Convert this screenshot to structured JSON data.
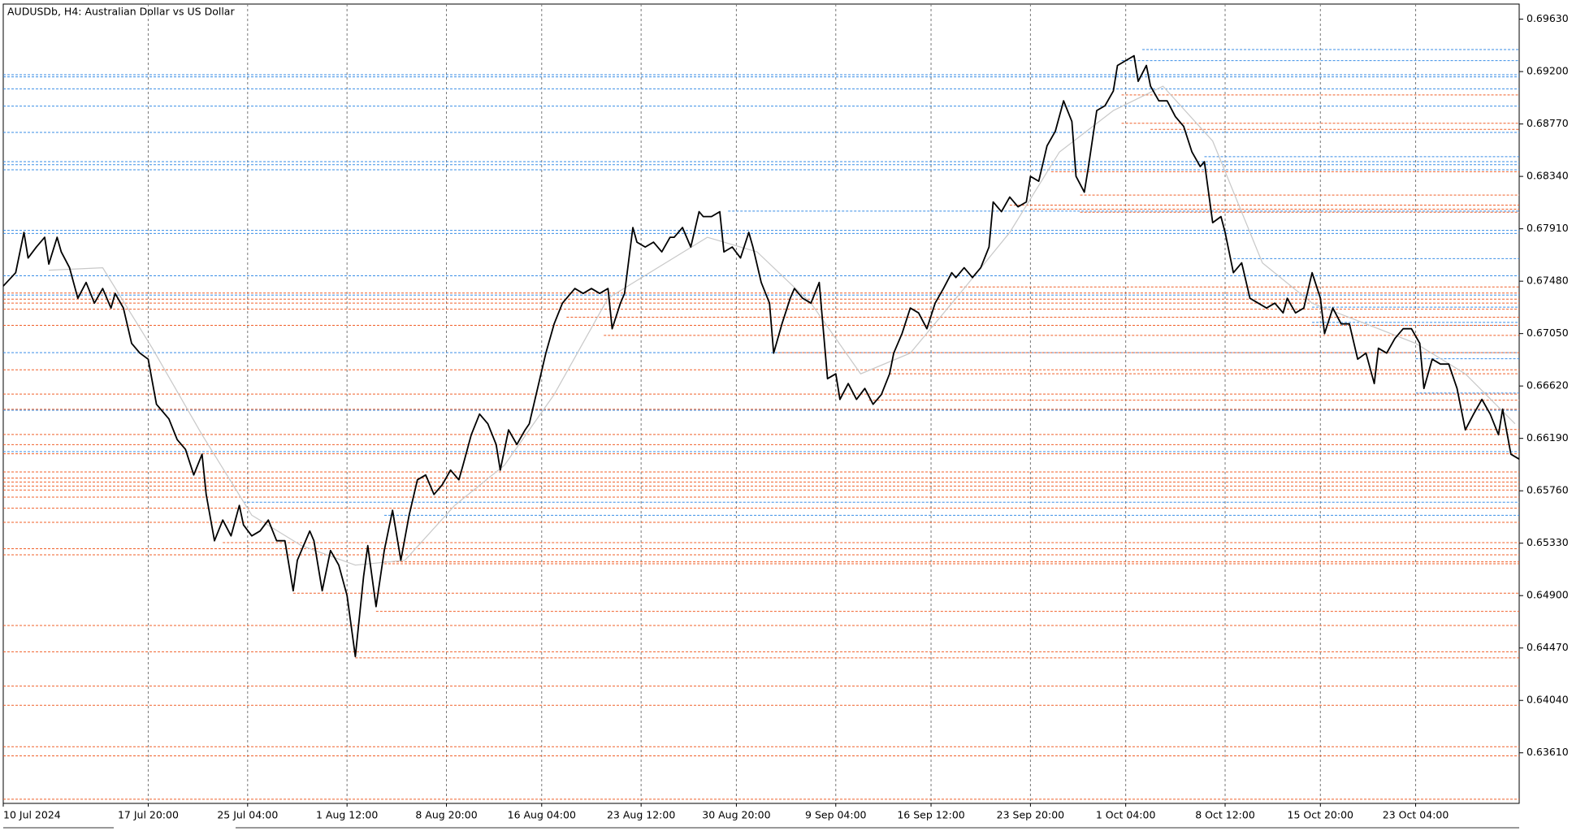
{
  "chart_data": {
    "type": "line",
    "title": "AUDUSDb, H4:  Australian Dollar vs US Dollar",
    "x": [
      0,
      3,
      5,
      6,
      8,
      10,
      11,
      13,
      14,
      16,
      18,
      20,
      22,
      24,
      26,
      27,
      29,
      31,
      33,
      35,
      37,
      40,
      42,
      44,
      46,
      48,
      49,
      51,
      53,
      55,
      57,
      58,
      60,
      62,
      64,
      66,
      68,
      70,
      71,
      74,
      75,
      77,
      79,
      81,
      83,
      85,
      87,
      88,
      90,
      92,
      94,
      96,
      98,
      100,
      102,
      104,
      106,
      108,
      110,
      111,
      113,
      115,
      117,
      119,
      120,
      122,
      124,
      126,
      127,
      129,
      131,
      133,
      135,
      137,
      138,
      140,
      142,
      144,
      146,
      147,
      149,
      150,
      152,
      153,
      155,
      157,
      159,
      161,
      162,
      164,
      166,
      168,
      169,
      171,
      173,
      174,
      176,
      178,
      180,
      181,
      183,
      185,
      186,
      188,
      190,
      191,
      193,
      195,
      197,
      199,
      201,
      202,
      204,
      206,
      208,
      210,
      212,
      214,
      215,
      217,
      219,
      221,
      223,
      225,
      227,
      229,
      230,
      232,
      234,
      236,
      238,
      239,
      241,
      243,
      245,
      247,
      248,
      250,
      252,
      254,
      256,
      258,
      259,
      261,
      262,
      264,
      266,
      268,
      269,
      271,
      273,
      274,
      276,
      277,
      279,
      281,
      283,
      285,
      287,
      289,
      290,
      292,
      294,
      295,
      297,
      299,
      301,
      303,
      305,
      307,
      309,
      310,
      312,
      314,
      316,
      318,
      319,
      321,
      323,
      325,
      327,
      329,
      331,
      332,
      334,
      336,
      338,
      340,
      342,
      343,
      345,
      347,
      349,
      351,
      353,
      355,
      357,
      359,
      361,
      362,
      364,
      366
    ],
    "series": [
      {
        "color": "#000000",
        "values": [
          0.6744,
          0.6755,
          0.6788,
          0.6767,
          0.6776,
          0.6784,
          0.6762,
          0.6784,
          0.6772,
          0.6759,
          0.6734,
          0.6747,
          0.673,
          0.6742,
          0.6726,
          0.6738,
          0.6726,
          0.6697,
          0.6689,
          0.6684,
          0.6647,
          0.6635,
          0.6618,
          0.661,
          0.6589,
          0.6606,
          0.6573,
          0.6535,
          0.6552,
          0.6539,
          0.6564,
          0.6548,
          0.6539,
          0.6543,
          0.6552,
          0.6535,
          0.6535,
          0.6494,
          0.6519,
          0.6543,
          0.6535,
          0.6494,
          0.6527,
          0.6515,
          0.649,
          0.644,
          0.6506,
          0.6531,
          0.6481,
          0.6527,
          0.656,
          0.6519,
          0.6556,
          0.6585,
          0.6589,
          0.6573,
          0.6581,
          0.6593,
          0.6585,
          0.6597,
          0.6622,
          0.6639,
          0.6631,
          0.6614,
          0.6593,
          0.6626,
          0.6614,
          0.6626,
          0.6631,
          0.666,
          0.6689,
          0.6713,
          0.673,
          0.6738,
          0.6742,
          0.6738,
          0.6742,
          0.6738,
          0.6742,
          0.6709,
          0.673,
          0.6738,
          0.6792,
          0.678,
          0.6776,
          0.678,
          0.6772,
          0.6784,
          0.6784,
          0.6792,
          0.6776,
          0.6805,
          0.6801,
          0.6801,
          0.6805,
          0.6772,
          0.6776,
          0.6767,
          0.6788,
          0.6776,
          0.6747,
          0.673,
          0.6689,
          0.6713,
          0.6734,
          0.6742,
          0.6734,
          0.673,
          0.6747,
          0.6668,
          0.6672,
          0.6651,
          0.6664,
          0.6651,
          0.666,
          0.6647,
          0.6655,
          0.6672,
          0.6689,
          0.6705,
          0.6726,
          0.6722,
          0.6709,
          0.673,
          0.6742,
          0.6755,
          0.6751,
          0.6759,
          0.6751,
          0.6759,
          0.6776,
          0.6813,
          0.6805,
          0.6817,
          0.6809,
          0.6813,
          0.6834,
          0.683,
          0.6859,
          0.6871,
          0.6896,
          0.6879,
          0.6834,
          0.6821,
          0.6842,
          0.6888,
          0.6892,
          0.6904,
          0.6925,
          0.6929,
          0.6933,
          0.6912,
          0.6925,
          0.6908,
          0.6896,
          0.6896,
          0.6883,
          0.6875,
          0.6854,
          0.6842,
          0.6846,
          0.6796,
          0.6801,
          0.6788,
          0.6755,
          0.6763,
          0.6734,
          0.673,
          0.6726,
          0.673,
          0.6722,
          0.6734,
          0.6722,
          0.6726,
          0.6755,
          0.6734,
          0.6705,
          0.6726,
          0.6713,
          0.6713,
          0.6684,
          0.6689,
          0.6664,
          0.6693,
          0.6689,
          0.6701,
          0.6709,
          0.6709,
          0.6697,
          0.666,
          0.6684,
          0.668,
          0.668,
          0.666,
          0.6626,
          0.6639,
          0.6651,
          0.6639,
          0.6622,
          0.6643,
          0.6606,
          0.6602
        ]
      }
    ],
    "moving_average": {
      "color": "#c8c8c8",
      "x": [
        11,
        24,
        36,
        48,
        60,
        72,
        85,
        97,
        109,
        121,
        133,
        146,
        158,
        170,
        182,
        195,
        207,
        219,
        231,
        243,
        255,
        268,
        280,
        292,
        304,
        316,
        329,
        341,
        353,
        365
      ],
      "values": [
        0.6757,
        0.6759,
        0.6693,
        0.6622,
        0.6556,
        0.6531,
        0.6515,
        0.6519,
        0.6564,
        0.6597,
        0.6655,
        0.6734,
        0.6759,
        0.6784,
        0.6772,
        0.673,
        0.6672,
        0.6689,
        0.6738,
        0.6788,
        0.6854,
        0.6888,
        0.6908,
        0.6863,
        0.6763,
        0.673,
        0.6713,
        0.6697,
        0.6672,
        0.6631
      ]
    },
    "levels": [
      {
        "color": "#3a8ee6",
        "start": [
          275,
          270,
          0,
          0,
          0,
          0,
          0,
          290,
          0,
          0,
          0,
          175,
          0,
          0,
          297,
          0,
          0,
          316,
          316,
          316,
          0,
          341,
          341,
          0,
          0,
          58,
          92
        ],
        "values": [
          0.69381,
          0.6929,
          0.69174,
          0.69157,
          0.69058,
          0.68917,
          0.68701,
          0.68502,
          0.68461,
          0.68436,
          0.68394,
          0.68055,
          0.67897,
          0.67872,
          0.67665,
          0.67524,
          0.67366,
          0.67267,
          0.67142,
          0.67118,
          0.66894,
          0.66844,
          0.66562,
          0.66421,
          0.66081,
          0.65666,
          0.65559
        ]
      },
      {
        "color": "#f0602a",
        "start": [
          270,
          270,
          277,
          253,
          260,
          243,
          248,
          260,
          231,
          0,
          0,
          0,
          0,
          136,
          0,
          145,
          187,
          0,
          214,
          0,
          209,
          0,
          353,
          0,
          0,
          0,
          0,
          0,
          0,
          0,
          0,
          0,
          0,
          0,
          53,
          0,
          0,
          92,
          92,
          70,
          90,
          0,
          0,
          85,
          0,
          0,
          0,
          0,
          0
        ],
        "values": [
          0.69008,
          0.68776,
          0.68726,
          0.68378,
          0.68187,
          0.68104,
          0.68071,
          0.68046,
          0.67433,
          0.67383,
          0.67333,
          0.673,
          0.6725,
          0.67184,
          0.67118,
          0.67035,
          0.66894,
          0.66753,
          0.6672,
          0.66554,
          0.66504,
          0.66429,
          0.66263,
          0.66222,
          0.66139,
          0.66064,
          0.65915,
          0.65865,
          0.65832,
          0.65799,
          0.65766,
          0.65708,
          0.65617,
          0.65501,
          0.65335,
          0.65285,
          0.65235,
          0.65177,
          0.65161,
          0.6492,
          0.64771,
          0.64655,
          0.64439,
          0.64389,
          0.64157,
          0.64,
          0.6366,
          0.63585,
          0.63229
        ]
      }
    ],
    "xlim": [
      0,
      366
    ],
    "xticks": [
      {
        "value": 0,
        "label": "10 Jul 2024"
      },
      {
        "value": 35,
        "label": "17 Jul 20:00"
      },
      {
        "value": 59,
        "label": "25 Jul 04:00"
      },
      {
        "value": 83,
        "label": "1 Aug 12:00"
      },
      {
        "value": 107,
        "label": "8 Aug 20:00"
      },
      {
        "value": 130,
        "label": "16 Aug 04:00"
      },
      {
        "value": 154,
        "label": "23 Aug 12:00"
      },
      {
        "value": 177,
        "label": "30 Aug 20:00"
      },
      {
        "value": 201,
        "label": "9 Sep 04:00"
      },
      {
        "value": 224,
        "label": "16 Sep 12:00"
      },
      {
        "value": 248,
        "label": "23 Sep 20:00"
      },
      {
        "value": 271,
        "label": "1 Oct 04:00"
      },
      {
        "value": 295,
        "label": "8 Oct 12:00"
      },
      {
        "value": 318,
        "label": "15 Oct 20:00"
      },
      {
        "value": 341,
        "label": "23 Oct 04:00"
      }
    ],
    "ylim": [
      0.63195,
      0.69754
    ],
    "yticks": [
      {
        "value": 0.6963,
        "label": "0.69630"
      },
      {
        "value": 0.692,
        "label": "0.69200"
      },
      {
        "value": 0.6877,
        "label": "0.68770"
      },
      {
        "value": 0.6834,
        "label": "0.68340"
      },
      {
        "value": 0.6791,
        "label": "0.67910"
      },
      {
        "value": 0.6748,
        "label": "0.67480"
      },
      {
        "value": 0.6705,
        "label": "0.67050"
      },
      {
        "value": 0.6662,
        "label": "0.66620"
      },
      {
        "value": 0.6619,
        "label": "0.66190"
      },
      {
        "value": 0.6576,
        "label": "0.65760"
      },
      {
        "value": 0.6533,
        "label": "0.65330"
      },
      {
        "value": 0.649,
        "label": "0.64900"
      },
      {
        "value": 0.6447,
        "label": "0.64470"
      },
      {
        "value": 0.6404,
        "label": "0.64040"
      },
      {
        "value": 0.6361,
        "label": "0.63610"
      }
    ],
    "grid": true
  }
}
